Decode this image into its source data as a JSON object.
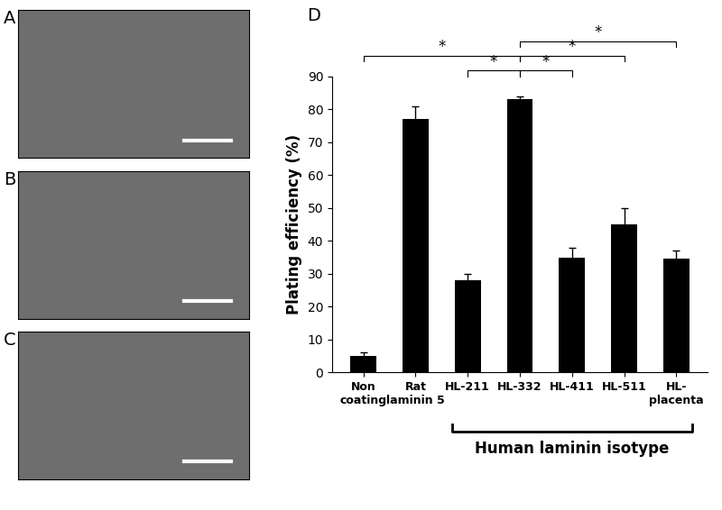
{
  "panels": [
    {
      "label": "A"
    },
    {
      "label": "B"
    },
    {
      "label": "C"
    }
  ],
  "chart_data": {
    "type": "bar",
    "panel_label": "D",
    "categories": [
      "Non\ncoating",
      "Rat\nlaminin 5",
      "HL-211",
      "HL-332",
      "HL-411",
      "HL-511",
      "HL-\nplacenta"
    ],
    "values": [
      5,
      77,
      28,
      83,
      35,
      45,
      34.5
    ],
    "errors": [
      1,
      4,
      2,
      1,
      3,
      5,
      2.5
    ],
    "color": "#000000",
    "y_label": "Plating efficiency (%)",
    "ylim": [
      0,
      90
    ],
    "yticks": [
      0,
      10,
      20,
      30,
      40,
      50,
      60,
      70,
      80,
      90
    ],
    "grid": false,
    "significance": [
      {
        "from": "Non\ncoating",
        "to": "HL-332",
        "label": "*"
      },
      {
        "from": "HL-211",
        "to": "HL-332",
        "label": "*"
      },
      {
        "from": "HL-332",
        "to": "HL-411",
        "label": "*"
      },
      {
        "from": "HL-332",
        "to": "HL-511",
        "label": "*"
      },
      {
        "from": "HL-332",
        "to": "HL-placenta",
        "label": "*"
      }
    ],
    "group": {
      "label": "Human laminin isotype",
      "from": "HL-211",
      "to": "HL-\nplacenta"
    }
  }
}
